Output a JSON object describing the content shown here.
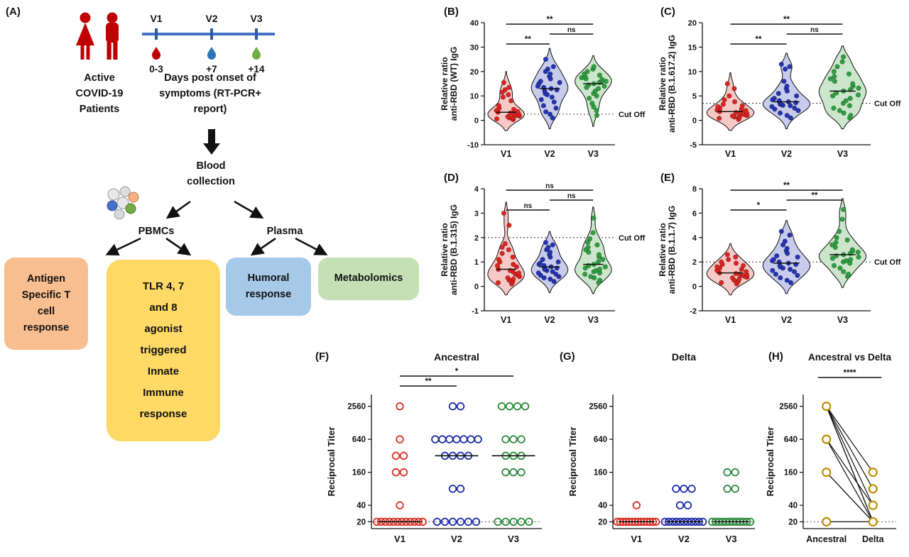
{
  "panels": {
    "A": "(A)",
    "B": "(B)",
    "C": "(C)",
    "D": "(D)",
    "E": "(E)",
    "F": "(F)",
    "G": "(G)",
    "H": "(H)"
  },
  "panel_a": {
    "patients": [
      "Active",
      "COVID-19",
      "Patients"
    ],
    "timeline_visits": [
      "V1",
      "V2",
      "V3"
    ],
    "timeline_days": [
      "0-3",
      "+7",
      "+14"
    ],
    "timeline_caption": [
      "Days post onset of",
      "symptoms (RT-PCR+",
      "report)"
    ],
    "blood_collection": [
      "Blood",
      "collection"
    ],
    "pbmcs_label": "PBMCs",
    "plasma_label": "Plasma",
    "boxes": {
      "antigen": {
        "color": "#F8BE8F",
        "lines": [
          "Antigen",
          "Specific T",
          "cell",
          "response"
        ]
      },
      "tlr": {
        "color": "#FFD966",
        "lines": [
          "TLR 4, 7",
          "and 8",
          "agonist",
          "triggered",
          "Innate",
          "Immune",
          "response"
        ]
      },
      "humoral": {
        "color": "#A6C9E8",
        "lines": [
          "Humoral",
          "response"
        ]
      },
      "metabolomics": {
        "color": "#C5E0B4",
        "lines": [
          "Metabolomics"
        ]
      }
    }
  },
  "chart_data": [
    {
      "id": "B",
      "type": "violin",
      "ylabel": [
        "Relative ratio",
        "anti-RBD (WT) IgG"
      ],
      "ylim": [
        -10,
        40
      ],
      "yticks": [
        -10,
        0,
        10,
        20,
        30,
        40
      ],
      "categories": [
        "V1",
        "V2",
        "V3"
      ],
      "cutoff": {
        "value": 2.5,
        "label": "Cut Off"
      },
      "significance": [
        {
          "a": 0,
          "b": 2,
          "label": "**",
          "row": 0
        },
        {
          "a": 1,
          "b": 2,
          "label": "ns",
          "row": 1
        },
        {
          "a": 0,
          "b": 1,
          "label": "**",
          "row": 2
        }
      ],
      "series": [
        {
          "name": "V1",
          "color": "#DB2420",
          "fill": "#F6C9C6",
          "values": [
            0.3,
            0.6,
            0.8,
            1,
            1.2,
            1.5,
            1.8,
            2,
            2.2,
            2.5,
            2.8,
            3,
            3.3,
            3.6,
            4,
            4.5,
            5,
            6,
            8,
            9.5,
            10.5,
            11.5,
            12.5,
            13.5,
            15.5
          ]
        },
        {
          "name": "V2",
          "color": "#2433B0",
          "fill": "#C7CBEC",
          "values": [
            1,
            2.5,
            3.5,
            5,
            6,
            7.5,
            8.5,
            9.5,
            10.5,
            11,
            12,
            12.5,
            13,
            13.5,
            14,
            15,
            15.5,
            16,
            17,
            18,
            19,
            20,
            21,
            22,
            25
          ]
        },
        {
          "name": "V3",
          "color": "#2F9E41",
          "fill": "#CBE6CB",
          "values": [
            2,
            4,
            5.5,
            7,
            9,
            10,
            11,
            12,
            13,
            13.5,
            14,
            14.5,
            15,
            15.5,
            16,
            16.2,
            16.8,
            17,
            17.5,
            18,
            18.5,
            19,
            20,
            21,
            22
          ]
        }
      ]
    },
    {
      "id": "C",
      "type": "violin",
      "ylabel": [
        "Relative ratio",
        "anti-RBD (B.1.617.2) IgG"
      ],
      "ylim": [
        -5,
        20
      ],
      "yticks": [
        -5,
        0,
        5,
        10,
        15,
        20
      ],
      "categories": [
        "V1",
        "V2",
        "V3"
      ],
      "cutoff": {
        "value": 3.5,
        "label": "Cut Off"
      },
      "significance": [
        {
          "a": 0,
          "b": 2,
          "label": "**",
          "row": 0
        },
        {
          "a": 1,
          "b": 2,
          "label": "ns",
          "row": 1
        },
        {
          "a": 0,
          "b": 1,
          "label": "**",
          "row": 2
        }
      ],
      "series": [
        {
          "name": "V1",
          "color": "#DB2420",
          "fill": "#F6C9C6",
          "values": [
            0.2,
            0.4,
            0.5,
            0.7,
            0.8,
            0.9,
            1,
            1.1,
            1.3,
            1.4,
            1.5,
            1.6,
            1.8,
            2,
            2.1,
            2.3,
            2.5,
            2.8,
            3,
            3.3,
            3.8,
            4.2,
            5,
            6.5,
            7.5
          ]
        },
        {
          "name": "V2",
          "color": "#2433B0",
          "fill": "#C7CBEC",
          "values": [
            0.5,
            1,
            1.5,
            2,
            2.3,
            2.5,
            2.8,
            3,
            3.1,
            3.3,
            3.5,
            3.6,
            3.8,
            4,
            4.2,
            4.5,
            5,
            5.5,
            6,
            6.5,
            7,
            8,
            10.5,
            11,
            11.5
          ]
        },
        {
          "name": "V3",
          "color": "#2F9E41",
          "fill": "#CBE6CB",
          "values": [
            0.5,
            1,
            1.5,
            2,
            2.5,
            3,
            3.5,
            4,
            4.5,
            5,
            5.2,
            5.6,
            6,
            6.3,
            6.6,
            7,
            7.5,
            8,
            8.5,
            9,
            9.5,
            10,
            11,
            12,
            13
          ]
        }
      ]
    },
    {
      "id": "D",
      "type": "violin",
      "ylabel": [
        "Relative ratio",
        "anti-RBD (B.1.315) IgG"
      ],
      "ylim": [
        -1,
        4
      ],
      "yticks": [
        -1,
        0,
        1,
        2,
        3,
        4
      ],
      "categories": [
        "V1",
        "V2",
        "V3"
      ],
      "cutoff": {
        "value": 2,
        "label": "Cut Off"
      },
      "significance": [
        {
          "a": 0,
          "b": 2,
          "label": "ns",
          "row": 0
        },
        {
          "a": 1,
          "b": 2,
          "label": "ns",
          "row": 1
        },
        {
          "a": 0,
          "b": 1,
          "label": "ns",
          "row": 2
        }
      ],
      "series": [
        {
          "name": "V1",
          "color": "#DB2420",
          "fill": "#F6C9C6",
          "values": [
            0.1,
            0.15,
            0.2,
            0.25,
            0.3,
            0.35,
            0.4,
            0.45,
            0.5,
            0.55,
            0.6,
            0.65,
            0.7,
            0.8,
            0.85,
            0.9,
            1,
            1.1,
            1.2,
            1.35,
            1.5,
            1.6,
            1.75,
            2.5,
            3
          ]
        },
        {
          "name": "V2",
          "color": "#2433B0",
          "fill": "#C7CBEC",
          "values": [
            0.2,
            0.3,
            0.35,
            0.4,
            0.45,
            0.5,
            0.55,
            0.6,
            0.65,
            0.7,
            0.72,
            0.75,
            0.8,
            0.85,
            0.9,
            0.95,
            1,
            1.1,
            1.2,
            1.3,
            1.4,
            1.5,
            1.6,
            1.7,
            1.8
          ]
        },
        {
          "name": "V3",
          "color": "#2F9E41",
          "fill": "#CBE6CB",
          "values": [
            0.15,
            0.25,
            0.35,
            0.4,
            0.5,
            0.55,
            0.6,
            0.65,
            0.7,
            0.75,
            0.8,
            0.85,
            0.9,
            1,
            1.1,
            1.2,
            1.3,
            1.4,
            1.5,
            1.6,
            1.7,
            1.8,
            1.95,
            2.2,
            2.8
          ]
        }
      ]
    },
    {
      "id": "E",
      "type": "violin",
      "ylabel": [
        "Relative ratio",
        "anti-RBD (B.1.1.7) IgG"
      ],
      "ylim": [
        -2,
        8
      ],
      "yticks": [
        -2,
        0,
        2,
        4,
        6,
        8
      ],
      "categories": [
        "V1",
        "V2",
        "V3"
      ],
      "cutoff": {
        "value": 2,
        "label": "Cut Off"
      },
      "significance": [
        {
          "a": 0,
          "b": 2,
          "label": "**",
          "row": 0
        },
        {
          "a": 1,
          "b": 2,
          "label": "**",
          "row": 1
        },
        {
          "a": 0,
          "b": 1,
          "label": "*",
          "row": 2
        }
      ],
      "series": [
        {
          "name": "V1",
          "color": "#DB2420",
          "fill": "#F6C9C6",
          "values": [
            0.2,
            0.3,
            0.4,
            0.5,
            0.6,
            0.7,
            0.75,
            0.8,
            0.9,
            0.95,
            1,
            1.05,
            1.1,
            1.2,
            1.3,
            1.4,
            1.5,
            1.6,
            1.7,
            1.8,
            1.9,
            2,
            2.2,
            2.4,
            2.6
          ]
        },
        {
          "name": "V2",
          "color": "#2433B0",
          "fill": "#C7CBEC",
          "values": [
            0.3,
            0.5,
            0.7,
            0.9,
            1,
            1.2,
            1.3,
            1.4,
            1.5,
            1.6,
            1.7,
            1.8,
            1.9,
            2,
            2.1,
            2.2,
            2.4,
            2.5,
            2.7,
            2.9,
            3.1,
            3.4,
            3.7,
            4.2,
            4.5
          ]
        },
        {
          "name": "V3",
          "color": "#2F9E41",
          "fill": "#CBE6CB",
          "values": [
            0.8,
            1,
            1.2,
            1.5,
            1.7,
            1.9,
            2,
            2.1,
            2.2,
            2.3,
            2.4,
            2.5,
            2.6,
            2.7,
            2.8,
            2.9,
            3,
            3.2,
            3.4,
            3.6,
            3.8,
            4,
            4.5,
            5.5,
            6.3
          ]
        }
      ]
    },
    {
      "id": "F",
      "type": "scatter-log",
      "title": "Ancestral",
      "ylabel": [
        "Reciprocal Titer"
      ],
      "yticks": [
        20,
        40,
        160,
        640,
        2560
      ],
      "categories": [
        "V1",
        "V2",
        "V3"
      ],
      "baseline": 20,
      "medians": [
        20,
        320,
        320
      ],
      "significance": [
        {
          "a": 0,
          "b": 2,
          "label": "*",
          "row": 0
        },
        {
          "a": 0,
          "b": 1,
          "label": "**",
          "row": 1
        }
      ],
      "series": [
        {
          "name": "V1",
          "color": "#D93025",
          "values": [
            2560,
            640,
            320,
            320,
            160,
            160,
            40,
            20,
            20,
            20,
            20,
            20,
            20,
            20,
            20,
            20,
            20,
            20,
            20
          ]
        },
        {
          "name": "V2",
          "color": "#1F2DA8",
          "values": [
            2560,
            2560,
            640,
            640,
            640,
            640,
            640,
            640,
            640,
            320,
            320,
            320,
            320,
            80,
            80,
            20,
            20,
            20,
            20,
            20,
            20
          ]
        },
        {
          "name": "V3",
          "color": "#2E8B3D",
          "values": [
            2560,
            2560,
            2560,
            2560,
            640,
            640,
            640,
            320,
            320,
            320,
            160,
            160,
            160,
            20,
            20,
            20,
            20,
            20
          ]
        }
      ]
    },
    {
      "id": "G",
      "type": "scatter-log",
      "title": "Delta",
      "ylabel": [
        "Reciprocal Titer"
      ],
      "yticks": [
        20,
        40,
        160,
        640,
        2560
      ],
      "categories": [
        "V1",
        "V2",
        "V3"
      ],
      "baseline": 20,
      "medians": [
        20,
        20,
        20
      ],
      "significance": [],
      "series": [
        {
          "name": "V1",
          "color": "#D93025",
          "values": [
            40,
            20,
            20,
            20,
            20,
            20,
            20,
            20,
            20,
            20,
            20,
            20,
            20,
            20,
            20
          ]
        },
        {
          "name": "V2",
          "color": "#1F2DA8",
          "values": [
            80,
            80,
            80,
            40,
            40,
            20,
            20,
            20,
            20,
            20,
            20,
            20,
            20,
            20,
            20,
            20
          ]
        },
        {
          "name": "V3",
          "color": "#2E8B3D",
          "values": [
            160,
            160,
            80,
            80,
            20,
            20,
            20,
            20,
            20,
            20,
            20,
            20,
            20,
            20,
            20,
            20
          ]
        }
      ]
    },
    {
      "id": "H",
      "type": "paired-log",
      "title": "Ancestral vs Delta",
      "ylabel": [
        "Reciprocal Titer"
      ],
      "yticks": [
        20,
        40,
        160,
        640,
        2560
      ],
      "categories": [
        "Ancestral",
        "Delta"
      ],
      "baseline": 20,
      "color": "#C18F00",
      "significance": [
        {
          "a": 0,
          "b": 1,
          "label": "****",
          "row": 0
        }
      ],
      "pairs": [
        [
          2560,
          160
        ],
        [
          2560,
          80
        ],
        [
          2560,
          40
        ],
        [
          2560,
          20
        ],
        [
          2560,
          20
        ],
        [
          640,
          40
        ],
        [
          640,
          20
        ],
        [
          160,
          20
        ],
        [
          160,
          20
        ],
        [
          20,
          20
        ]
      ]
    }
  ]
}
